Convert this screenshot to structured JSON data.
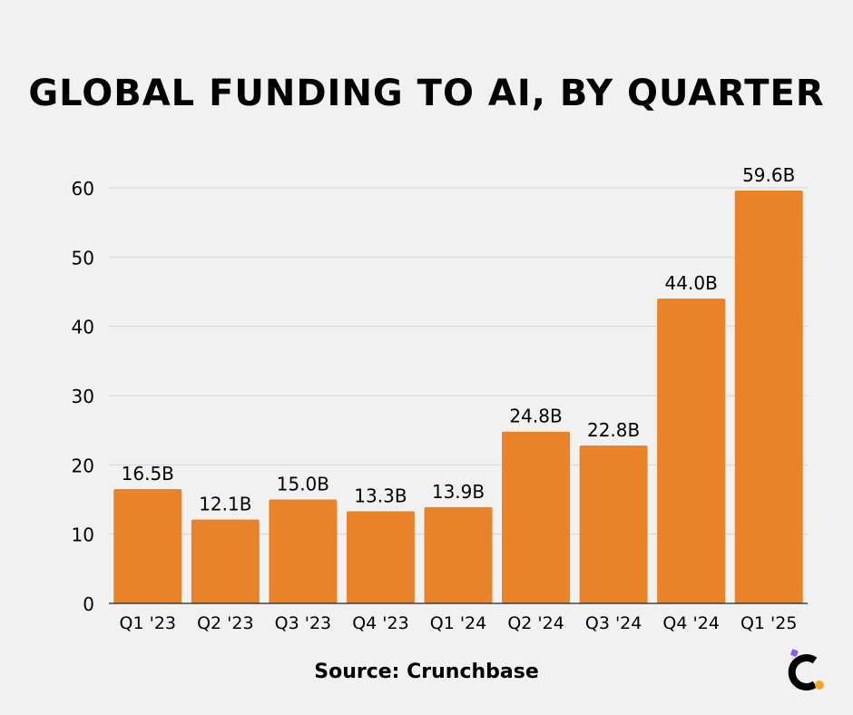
{
  "colors": {
    "bar": "#e8832a",
    "grid": "#d4d4d4",
    "axis": "#222222",
    "text": "#000000",
    "logo_dot": "#f5a623",
    "logo_accent": "#8b5cf6"
  },
  "footer": {
    "source": "Source: Crunchbase"
  },
  "logo": {
    "icon": "crunchbase-logo-icon"
  },
  "chart_data": {
    "type": "bar",
    "title": "GLOBAL FUNDING TO AI, BY QUARTER",
    "xlabel": "",
    "ylabel": "",
    "ylim": [
      0,
      60
    ],
    "yticks": [
      0,
      10,
      20,
      30,
      40,
      50,
      60
    ],
    "grid": true,
    "categories": [
      "Q1 '23",
      "Q2 '23",
      "Q3 '23",
      "Q4 '23",
      "Q1 '24",
      "Q2 '24",
      "Q3 '24",
      "Q4 '24",
      "Q1 '25"
    ],
    "values": [
      16.5,
      12.1,
      15.0,
      13.3,
      13.9,
      24.8,
      22.8,
      44.0,
      59.6
    ],
    "labels": [
      "16.5B",
      "12.1B",
      "15.0B",
      "13.3B",
      "13.9B",
      "24.8B",
      "22.8B",
      "44.0B",
      "59.6B"
    ]
  }
}
